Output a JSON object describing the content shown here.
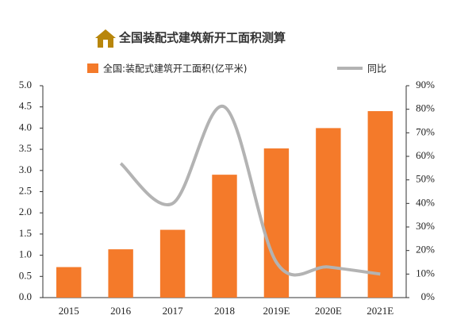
{
  "chart_data": {
    "type": "bar",
    "title": "全国装配式建筑新开工面积测算",
    "categories": [
      "2015",
      "2016",
      "2017",
      "2018",
      "2019E",
      "2020E",
      "2021E"
    ],
    "series": [
      {
        "name": "全国:装配式建筑开工面积(亿平米)",
        "type": "bar",
        "color": "#f47a2a",
        "values": [
          0.72,
          1.14,
          1.6,
          2.9,
          3.52,
          4.0,
          4.4
        ]
      },
      {
        "name": "同比",
        "type": "line",
        "axis": "y2",
        "color": "#b3b3b3",
        "values": [
          null,
          57,
          40,
          81,
          15,
          13,
          10
        ]
      }
    ],
    "ylim": [
      0,
      5
    ],
    "yticks": [
      {
        "value": 0,
        "label": "0.0"
      },
      0.5,
      {
        "value": 1,
        "label": "1.0"
      },
      1.5,
      {
        "value": 2,
        "label": "2.0"
      },
      2.5,
      {
        "value": 3,
        "label": "3.0"
      },
      3.5,
      {
        "value": 4,
        "label": "4.0"
      },
      4.5,
      {
        "value": 5,
        "label": "5.0"
      }
    ],
    "y2lim": [
      0,
      90
    ],
    "y2ticks": [
      {
        "value": 0,
        "label": "0%"
      },
      {
        "value": 10,
        "label": "10%"
      },
      {
        "value": 20,
        "label": "20%"
      },
      {
        "value": 30,
        "label": "30%"
      },
      {
        "value": 40,
        "label": "40%"
      },
      {
        "value": 50,
        "label": "50%"
      },
      {
        "value": 60,
        "label": "60%"
      },
      {
        "value": 70,
        "label": "70%"
      },
      {
        "value": 80,
        "label": "80%"
      },
      {
        "value": 90,
        "label": "90%"
      }
    ]
  }
}
